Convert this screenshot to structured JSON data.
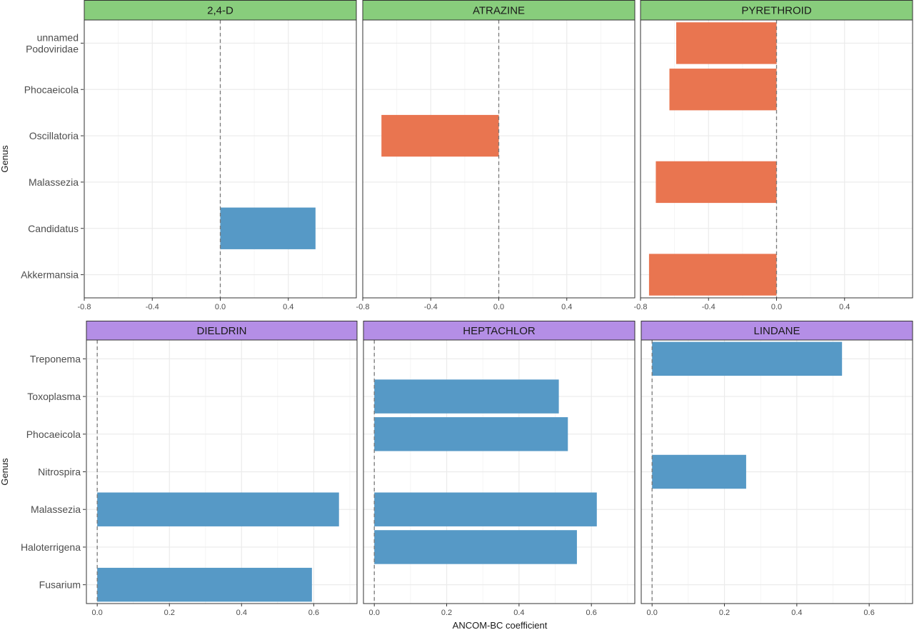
{
  "colors": {
    "positive": "#5699c6",
    "negative": "#e97550",
    "strip_top": "#88cd7c",
    "strip_bottom": "#b48ee6",
    "zero_line": "#7a7a7a",
    "grid_major": "#ebebeb",
    "grid_minor": "#f5f5f5",
    "panel_border": "#333333"
  },
  "chart_data": [
    {
      "type": "bar",
      "orientation": "horizontal",
      "facet_row": "top",
      "xlim": [
        -0.8,
        0.8
      ],
      "xticks": [
        -0.8,
        -0.4,
        0.0,
        0.4
      ],
      "xtick_labels": [
        "-0.8",
        "-0.4",
        "0.0",
        "0.4"
      ],
      "ylabel": "Genus",
      "categories": [
        {
          "lines": [
            "unnamed",
            "Podoviridae"
          ]
        },
        {
          "lines": [
            "Phocaeicola"
          ]
        },
        {
          "lines": [
            "Oscillatoria"
          ]
        },
        {
          "lines": [
            "Malassezia"
          ]
        },
        {
          "lines": [
            "Candidatus"
          ]
        },
        {
          "lines": [
            "Akkermansia"
          ]
        }
      ],
      "panels": [
        {
          "title": "2,4-D",
          "values": [
            null,
            null,
            null,
            null,
            0.56,
            null
          ]
        },
        {
          "title": "ATRAZINE",
          "values": [
            null,
            null,
            -0.69,
            null,
            null,
            null
          ]
        },
        {
          "title": "PYRETHROID",
          "values": [
            -0.59,
            -0.63,
            null,
            -0.71,
            null,
            -0.75
          ]
        }
      ]
    },
    {
      "type": "bar",
      "orientation": "horizontal",
      "facet_row": "bottom",
      "xlim": [
        -0.03,
        0.72
      ],
      "xticks": [
        0.0,
        0.2,
        0.4,
        0.6
      ],
      "xtick_labels": [
        "0.0",
        "0.2",
        "0.4",
        "0.6"
      ],
      "ylabel": "Genus",
      "xlabel": "ANCOM-BC coefficient",
      "categories": [
        {
          "lines": [
            "Treponema"
          ]
        },
        {
          "lines": [
            "Toxoplasma"
          ]
        },
        {
          "lines": [
            "Phocaeicola"
          ]
        },
        {
          "lines": [
            "Nitrospira"
          ]
        },
        {
          "lines": [
            "Malassezia"
          ]
        },
        {
          "lines": [
            "Haloterrigena"
          ]
        },
        {
          "lines": [
            "Fusarium"
          ]
        }
      ],
      "panels": [
        {
          "title": "DIELDRIN",
          "values": [
            null,
            null,
            null,
            null,
            0.67,
            null,
            0.595
          ]
        },
        {
          "title": "HEPTACHLOR",
          "values": [
            null,
            0.51,
            0.535,
            null,
            0.615,
            0.56,
            null
          ]
        },
        {
          "title": "LINDANE",
          "values": [
            0.525,
            null,
            null,
            0.26,
            null,
            null,
            null
          ]
        }
      ]
    }
  ]
}
